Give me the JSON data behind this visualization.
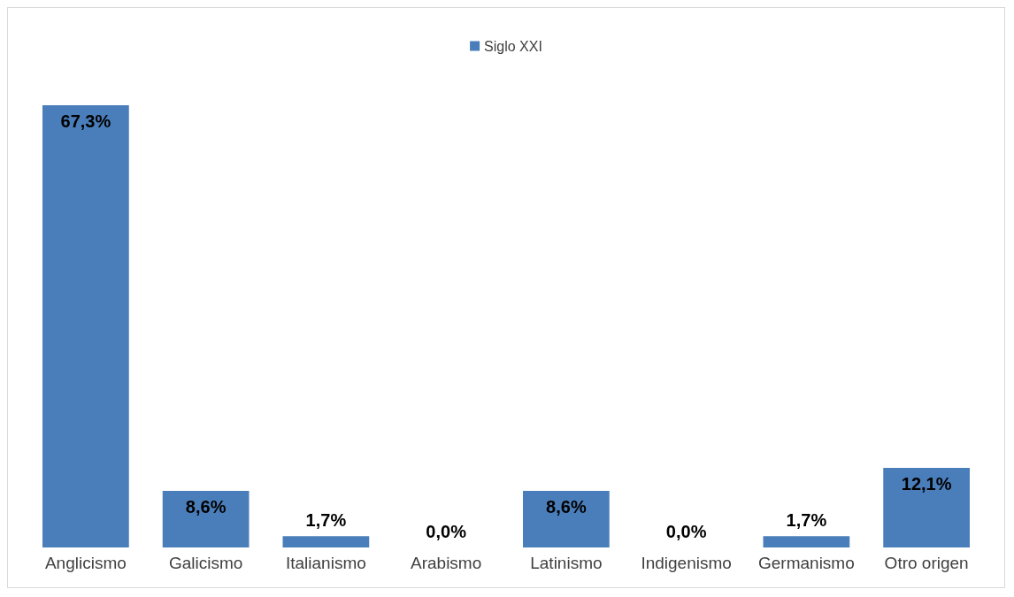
{
  "chart_data": {
    "type": "bar",
    "categories": [
      "Anglicismo",
      "Galicismo",
      "Italianismo",
      "Arabismo",
      "Latinismo",
      "Indigenismo",
      "Germanismo",
      "Otro origen"
    ],
    "series": [
      {
        "name": "Siglo XXI",
        "color": "#4a7ebb",
        "values": [
          67.3,
          8.6,
          1.7,
          0.0,
          8.6,
          0.0,
          1.7,
          12.1
        ],
        "value_labels": [
          "67,3%",
          "8,6%",
          "1,7%",
          "0,0%",
          "8,6%",
          "0,0%",
          "1,7%",
          "12,1%"
        ]
      }
    ],
    "legend": "top"
  }
}
